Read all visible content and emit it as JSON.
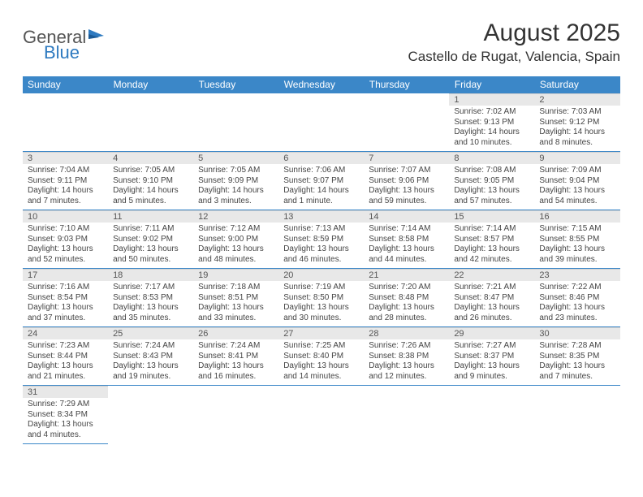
{
  "logo": {
    "text1": "General",
    "text2": "Blue"
  },
  "title": "August 2025",
  "location": "Castello de Rugat, Valencia, Spain",
  "colors": {
    "header_bg": "#3b87c8",
    "header_text": "#ffffff",
    "daynum_bg": "#e8e8e8",
    "border": "#3b87c8",
    "logo_gray": "#555555",
    "logo_blue": "#2e7ac0"
  },
  "day_headers": [
    "Sunday",
    "Monday",
    "Tuesday",
    "Wednesday",
    "Thursday",
    "Friday",
    "Saturday"
  ],
  "weeks": [
    [
      null,
      null,
      null,
      null,
      null,
      {
        "n": "1",
        "sunrise": "Sunrise: 7:02 AM",
        "sunset": "Sunset: 9:13 PM",
        "day": "Daylight: 14 hours and 10 minutes."
      },
      {
        "n": "2",
        "sunrise": "Sunrise: 7:03 AM",
        "sunset": "Sunset: 9:12 PM",
        "day": "Daylight: 14 hours and 8 minutes."
      }
    ],
    [
      {
        "n": "3",
        "sunrise": "Sunrise: 7:04 AM",
        "sunset": "Sunset: 9:11 PM",
        "day": "Daylight: 14 hours and 7 minutes."
      },
      {
        "n": "4",
        "sunrise": "Sunrise: 7:05 AM",
        "sunset": "Sunset: 9:10 PM",
        "day": "Daylight: 14 hours and 5 minutes."
      },
      {
        "n": "5",
        "sunrise": "Sunrise: 7:05 AM",
        "sunset": "Sunset: 9:09 PM",
        "day": "Daylight: 14 hours and 3 minutes."
      },
      {
        "n": "6",
        "sunrise": "Sunrise: 7:06 AM",
        "sunset": "Sunset: 9:07 PM",
        "day": "Daylight: 14 hours and 1 minute."
      },
      {
        "n": "7",
        "sunrise": "Sunrise: 7:07 AM",
        "sunset": "Sunset: 9:06 PM",
        "day": "Daylight: 13 hours and 59 minutes."
      },
      {
        "n": "8",
        "sunrise": "Sunrise: 7:08 AM",
        "sunset": "Sunset: 9:05 PM",
        "day": "Daylight: 13 hours and 57 minutes."
      },
      {
        "n": "9",
        "sunrise": "Sunrise: 7:09 AM",
        "sunset": "Sunset: 9:04 PM",
        "day": "Daylight: 13 hours and 54 minutes."
      }
    ],
    [
      {
        "n": "10",
        "sunrise": "Sunrise: 7:10 AM",
        "sunset": "Sunset: 9:03 PM",
        "day": "Daylight: 13 hours and 52 minutes."
      },
      {
        "n": "11",
        "sunrise": "Sunrise: 7:11 AM",
        "sunset": "Sunset: 9:02 PM",
        "day": "Daylight: 13 hours and 50 minutes."
      },
      {
        "n": "12",
        "sunrise": "Sunrise: 7:12 AM",
        "sunset": "Sunset: 9:00 PM",
        "day": "Daylight: 13 hours and 48 minutes."
      },
      {
        "n": "13",
        "sunrise": "Sunrise: 7:13 AM",
        "sunset": "Sunset: 8:59 PM",
        "day": "Daylight: 13 hours and 46 minutes."
      },
      {
        "n": "14",
        "sunrise": "Sunrise: 7:14 AM",
        "sunset": "Sunset: 8:58 PM",
        "day": "Daylight: 13 hours and 44 minutes."
      },
      {
        "n": "15",
        "sunrise": "Sunrise: 7:14 AM",
        "sunset": "Sunset: 8:57 PM",
        "day": "Daylight: 13 hours and 42 minutes."
      },
      {
        "n": "16",
        "sunrise": "Sunrise: 7:15 AM",
        "sunset": "Sunset: 8:55 PM",
        "day": "Daylight: 13 hours and 39 minutes."
      }
    ],
    [
      {
        "n": "17",
        "sunrise": "Sunrise: 7:16 AM",
        "sunset": "Sunset: 8:54 PM",
        "day": "Daylight: 13 hours and 37 minutes."
      },
      {
        "n": "18",
        "sunrise": "Sunrise: 7:17 AM",
        "sunset": "Sunset: 8:53 PM",
        "day": "Daylight: 13 hours and 35 minutes."
      },
      {
        "n": "19",
        "sunrise": "Sunrise: 7:18 AM",
        "sunset": "Sunset: 8:51 PM",
        "day": "Daylight: 13 hours and 33 minutes."
      },
      {
        "n": "20",
        "sunrise": "Sunrise: 7:19 AM",
        "sunset": "Sunset: 8:50 PM",
        "day": "Daylight: 13 hours and 30 minutes."
      },
      {
        "n": "21",
        "sunrise": "Sunrise: 7:20 AM",
        "sunset": "Sunset: 8:48 PM",
        "day": "Daylight: 13 hours and 28 minutes."
      },
      {
        "n": "22",
        "sunrise": "Sunrise: 7:21 AM",
        "sunset": "Sunset: 8:47 PM",
        "day": "Daylight: 13 hours and 26 minutes."
      },
      {
        "n": "23",
        "sunrise": "Sunrise: 7:22 AM",
        "sunset": "Sunset: 8:46 PM",
        "day": "Daylight: 13 hours and 23 minutes."
      }
    ],
    [
      {
        "n": "24",
        "sunrise": "Sunrise: 7:23 AM",
        "sunset": "Sunset: 8:44 PM",
        "day": "Daylight: 13 hours and 21 minutes."
      },
      {
        "n": "25",
        "sunrise": "Sunrise: 7:24 AM",
        "sunset": "Sunset: 8:43 PM",
        "day": "Daylight: 13 hours and 19 minutes."
      },
      {
        "n": "26",
        "sunrise": "Sunrise: 7:24 AM",
        "sunset": "Sunset: 8:41 PM",
        "day": "Daylight: 13 hours and 16 minutes."
      },
      {
        "n": "27",
        "sunrise": "Sunrise: 7:25 AM",
        "sunset": "Sunset: 8:40 PM",
        "day": "Daylight: 13 hours and 14 minutes."
      },
      {
        "n": "28",
        "sunrise": "Sunrise: 7:26 AM",
        "sunset": "Sunset: 8:38 PM",
        "day": "Daylight: 13 hours and 12 minutes."
      },
      {
        "n": "29",
        "sunrise": "Sunrise: 7:27 AM",
        "sunset": "Sunset: 8:37 PM",
        "day": "Daylight: 13 hours and 9 minutes."
      },
      {
        "n": "30",
        "sunrise": "Sunrise: 7:28 AM",
        "sunset": "Sunset: 8:35 PM",
        "day": "Daylight: 13 hours and 7 minutes."
      }
    ],
    [
      {
        "n": "31",
        "sunrise": "Sunrise: 7:29 AM",
        "sunset": "Sunset: 8:34 PM",
        "day": "Daylight: 13 hours and 4 minutes."
      },
      null,
      null,
      null,
      null,
      null,
      null
    ]
  ]
}
